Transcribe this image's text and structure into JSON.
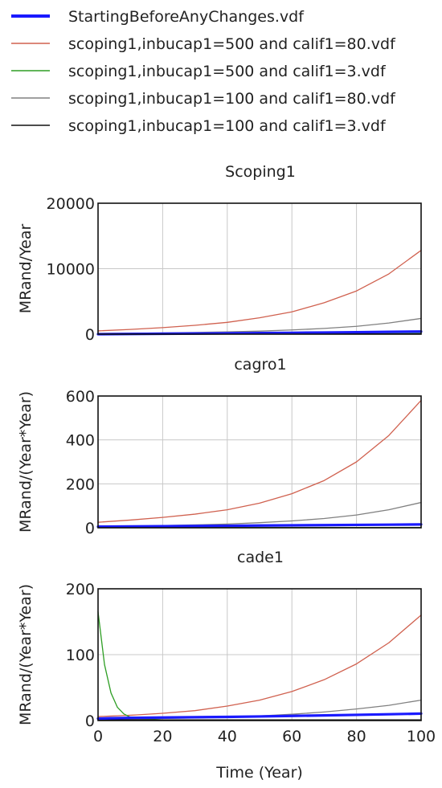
{
  "legend": [
    {
      "name": "StartingBeforeAnyChanges.vdf",
      "color": "#1a1aff"
    },
    {
      "name": "scoping1,inbucap1=500 and calif1=80.vdf",
      "color": "#d0614f"
    },
    {
      "name": "scoping1,inbucap1=500 and calif1=3.vdf",
      "color": "#2e9e24"
    },
    {
      "name": "scoping1,inbucap1=100 and calif1=80.vdf",
      "color": "#808080"
    },
    {
      "name": "scoping1,inbucap1=100 and calif1=3.vdf",
      "color": "#111111"
    }
  ],
  "xlabel": "Time (Year)",
  "chart_data": [
    {
      "type": "line",
      "title": "Scoping1",
      "ylabel": "MRand/Year",
      "xlim": [
        0,
        100
      ],
      "ylim": [
        0,
        20000
      ],
      "xticks": [
        0,
        20,
        40,
        60,
        80,
        100
      ],
      "yticks": [
        0,
        10000,
        20000
      ],
      "x": [
        0,
        10,
        20,
        30,
        40,
        50,
        60,
        70,
        80,
        90,
        100
      ],
      "series": [
        {
          "name": "StartingBeforeAnyChanges.vdf",
          "values": [
            0,
            30,
            60,
            90,
            130,
            170,
            210,
            250,
            300,
            350,
            400
          ]
        },
        {
          "name": "scoping1,inbucap1=500 and calif1=80.vdf",
          "values": [
            500,
            720,
            1000,
            1350,
            1800,
            2500,
            3400,
            4800,
            6600,
            9200,
            12800
          ]
        },
        {
          "name": "scoping1,inbucap1=500 and calif1=3.vdf",
          "values": [
            0,
            10,
            20,
            30,
            40,
            50,
            60,
            70,
            80,
            90,
            100
          ]
        },
        {
          "name": "scoping1,inbucap1=100 and calif1=80.vdf",
          "values": [
            100,
            140,
            190,
            260,
            350,
            470,
            640,
            870,
            1200,
            1700,
            2400
          ]
        },
        {
          "name": "scoping1,inbucap1=100 and calif1=3.vdf",
          "values": [
            0,
            5,
            10,
            15,
            20,
            25,
            30,
            35,
            40,
            45,
            50
          ]
        }
      ]
    },
    {
      "type": "line",
      "title": "cagro1",
      "ylabel": "MRand/(Year*Year)",
      "xlim": [
        0,
        100
      ],
      "ylim": [
        0,
        600
      ],
      "xticks": [
        0,
        20,
        40,
        60,
        80,
        100
      ],
      "yticks": [
        0,
        200,
        400,
        600
      ],
      "x": [
        0,
        10,
        20,
        30,
        40,
        50,
        60,
        70,
        80,
        90,
        100
      ],
      "series": [
        {
          "name": "StartingBeforeAnyChanges.vdf",
          "values": [
            5,
            6,
            7,
            8,
            9,
            10,
            11,
            12,
            13,
            14,
            15
          ]
        },
        {
          "name": "scoping1,inbucap1=500 and calif1=80.vdf",
          "values": [
            25,
            35,
            47,
            62,
            82,
            112,
            155,
            215,
            300,
            420,
            580
          ]
        },
        {
          "name": "scoping1,inbucap1=500 and calif1=3.vdf",
          "values": [
            1,
            1,
            1,
            1,
            1,
            1,
            1,
            1,
            1,
            1,
            1
          ]
        },
        {
          "name": "scoping1,inbucap1=100 and calif1=80.vdf",
          "values": [
            5,
            7,
            10,
            13,
            17,
            23,
            31,
            42,
            58,
            82,
            115
          ]
        },
        {
          "name": "scoping1,inbucap1=100 and calif1=3.vdf",
          "values": [
            0,
            0,
            0,
            0,
            0,
            0,
            0,
            0,
            0,
            0,
            0
          ]
        }
      ]
    },
    {
      "type": "line",
      "title": "cade1",
      "ylabel": "MRand/(Year*Year)",
      "xlim": [
        0,
        100
      ],
      "ylim": [
        0,
        200
      ],
      "xticks": [
        0,
        20,
        40,
        60,
        80,
        100
      ],
      "yticks": [
        0,
        100,
        200
      ],
      "x": [
        0,
        2,
        4,
        6,
        8,
        10,
        12,
        20,
        30,
        40,
        50,
        60,
        70,
        80,
        90,
        100
      ],
      "series": [
        {
          "name": "StartingBeforeAnyChanges.vdf",
          "values": [
            3,
            3.2,
            3.5,
            3.7,
            3.9,
            4.1,
            4.2,
            4.6,
            5,
            5.5,
            6.2,
            7,
            7.8,
            8.6,
            9.5,
            10.5
          ]
        },
        {
          "name": "scoping1,inbucap1=500 and calif1=80.vdf",
          "values": [
            6,
            6.4,
            6.8,
            7.2,
            7.6,
            8,
            8.5,
            11,
            15,
            22,
            31,
            44,
            62,
            86,
            118,
            160
          ]
        },
        {
          "name": "scoping1,inbucap1=500 and calif1=3.vdf",
          "values": [
            165,
            85,
            42,
            20,
            10,
            5,
            3,
            1,
            1,
            1,
            1,
            1,
            1,
            1,
            1,
            1
          ]
        },
        {
          "name": "scoping1,inbucap1=100 and calif1=80.vdf",
          "values": [
            2,
            2.1,
            2.2,
            2.3,
            2.4,
            2.6,
            2.7,
            3.2,
            4,
            5,
            7,
            9.5,
            13,
            17.5,
            23,
            31
          ]
        },
        {
          "name": "scoping1,inbucap1=100 and calif1=3.vdf",
          "values": [
            1,
            1,
            1,
            1,
            1,
            1,
            1,
            1,
            1,
            1,
            1,
            1,
            1,
            1,
            1,
            1
          ]
        }
      ]
    }
  ]
}
